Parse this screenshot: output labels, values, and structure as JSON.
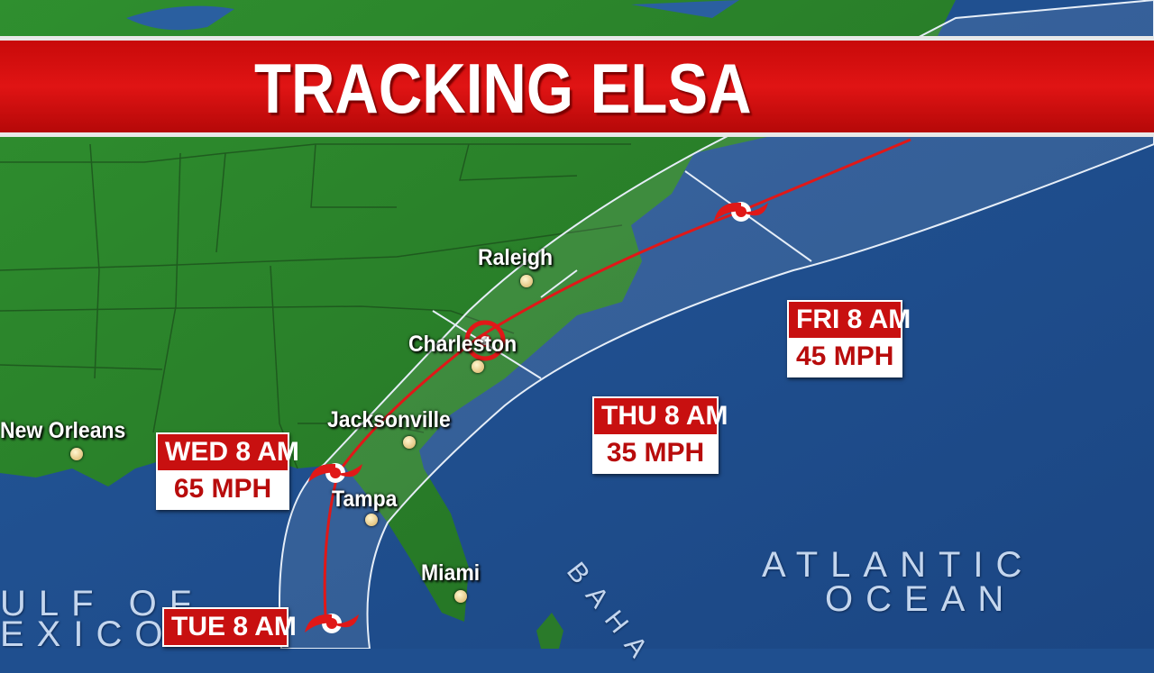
{
  "banner": {
    "title": "TRACKING ELSA"
  },
  "colors": {
    "banner_red": "#d41010",
    "land": "#2e8a2e",
    "ocean": "#1f4f8f",
    "track": "#e01818",
    "cone": "#ffffff"
  },
  "cities": [
    {
      "name": "Raleigh"
    },
    {
      "name": "Charleston"
    },
    {
      "name": "Jacksonville"
    },
    {
      "name": "New Orleans"
    },
    {
      "name": "Tampa"
    },
    {
      "name": "Miami"
    }
  ],
  "water_labels": {
    "atlantic_line1": "ATLANTIC",
    "atlantic_line2": "OCEAN",
    "gulf_line1": "ULF OF",
    "gulf_line2": "EXICO",
    "bahamas": "BAHA"
  },
  "forecasts": [
    {
      "time": "TUE 8 AM",
      "speed": ""
    },
    {
      "time": "WED 8 AM",
      "speed": "65 MPH"
    },
    {
      "time": "THU 8 AM",
      "speed": "35 MPH"
    },
    {
      "time": "FRI 8 AM",
      "speed": "45 MPH"
    }
  ],
  "icons": {
    "storm": "tropical-storm-icon",
    "city": "city-dot-icon"
  }
}
